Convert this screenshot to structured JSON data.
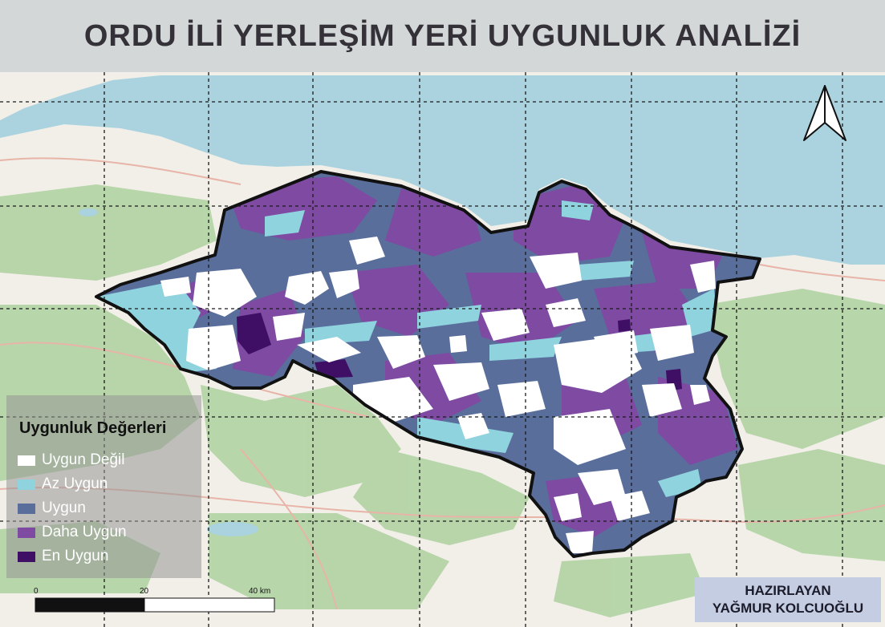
{
  "title": "ORDU İLİ YERLEŞİM YERİ UYGUNLUK ANALİZİ",
  "legend": {
    "title": "Uygunluk Değerleri",
    "items": [
      {
        "label": "Uygun Değil",
        "color": "#ffffff"
      },
      {
        "label": "Az Uygun",
        "color": "#8fd3df"
      },
      {
        "label": "Uygun",
        "color": "#5a6e9c"
      },
      {
        "label": "Daha Uygun",
        "color": "#7e4aa2"
      },
      {
        "label": "En Uygun",
        "color": "#3f0f66"
      }
    ]
  },
  "scalebar": {
    "ticks": [
      "0",
      "20",
      "40 km"
    ]
  },
  "credit": {
    "line1": "HAZIRLAYAN",
    "line2": "YAĞMUR KOLCUOĞLU"
  },
  "colors": {
    "sea": "#aad3df",
    "land": "#f2efe9",
    "forest": "#add19e",
    "boundary": "#111111",
    "grid": "#1a1a1a"
  },
  "north_arrow_icon": "north-arrow-icon"
}
